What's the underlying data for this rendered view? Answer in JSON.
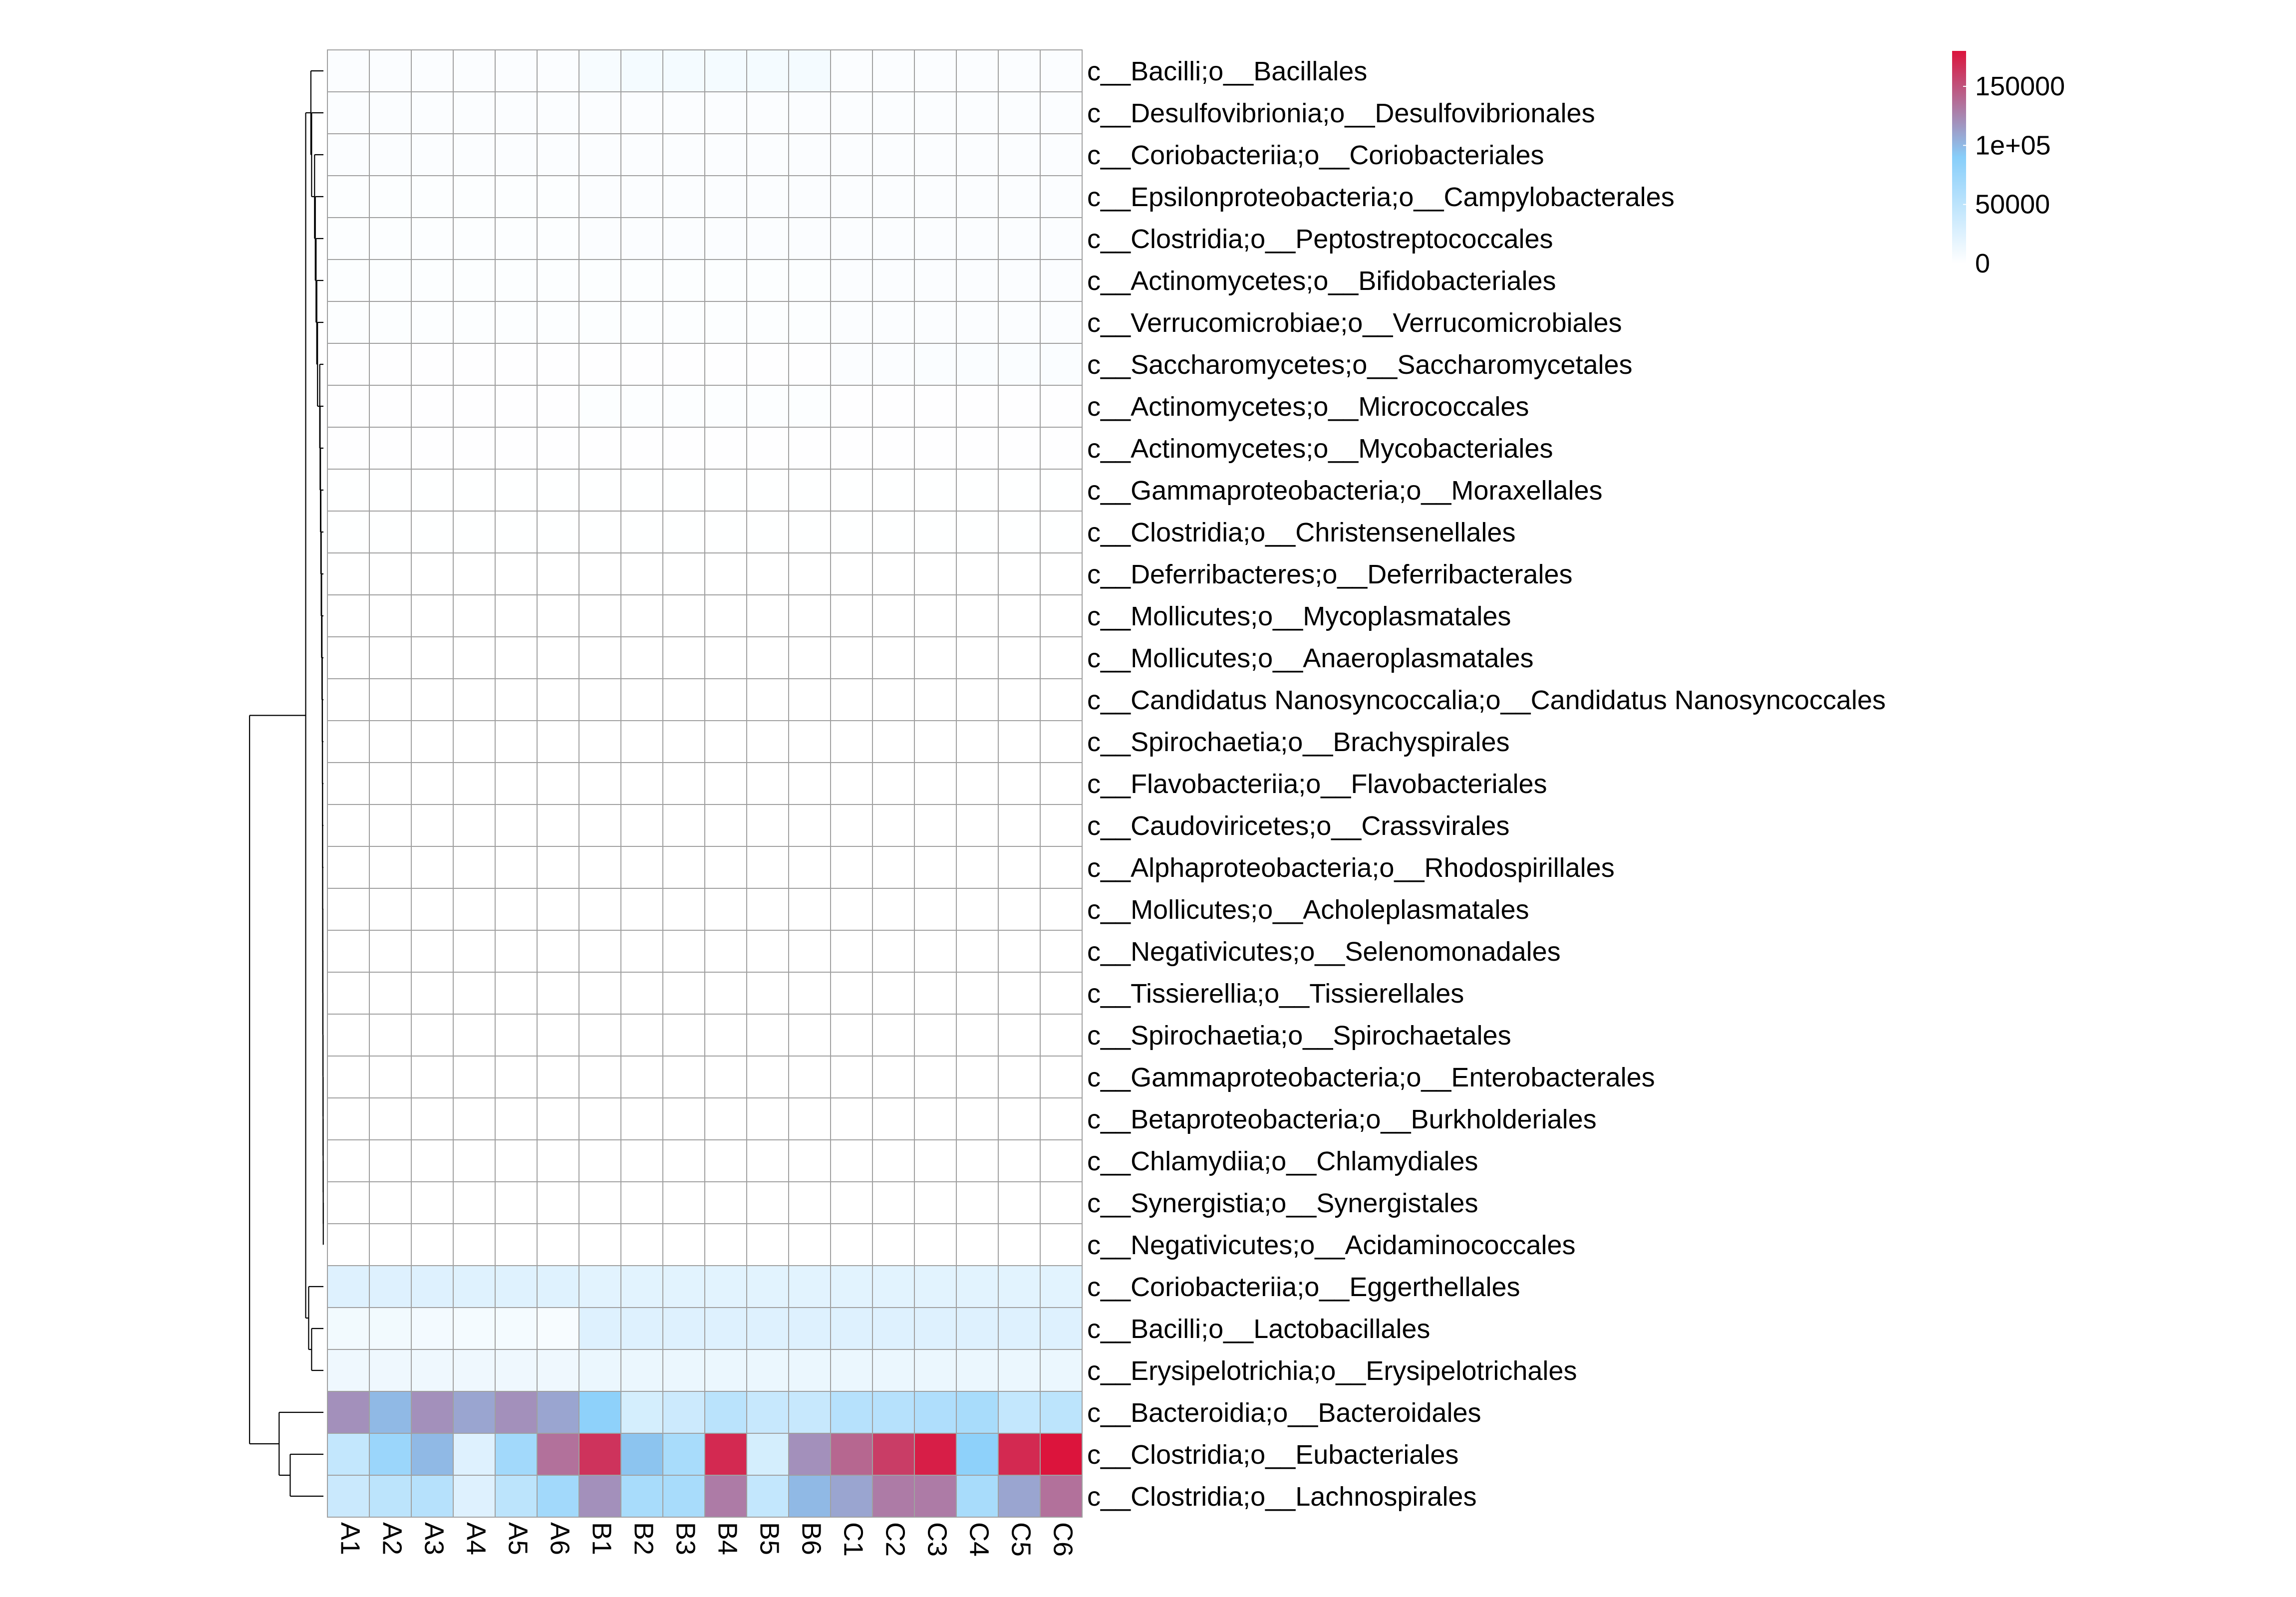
{
  "chart_data": {
    "type": "heatmap",
    "columns": [
      "A1",
      "A2",
      "A3",
      "A4",
      "A5",
      "A6",
      "B1",
      "B2",
      "B3",
      "B4",
      "B5",
      "B6",
      "C1",
      "C2",
      "C3",
      "C4",
      "C5",
      "C6"
    ],
    "rows": [
      "c__Bacilli;o__Bacillales",
      "c__Desulfovibrionia;o__Desulfovibrionales",
      "c__Coriobacteriia;o__Coriobacteriales",
      "c__Epsilonproteobacteria;o__Campylobacterales",
      "c__Clostridia;o__Peptostreptococcales",
      "c__Actinomycetes;o__Bifidobacteriales",
      "c__Verrucomicrobiae;o__Verrucomicrobiales",
      "c__Saccharomycetes;o__Saccharomycetales",
      "c__Actinomycetes;o__Micrococcales",
      "c__Actinomycetes;o__Mycobacteriales",
      "c__Gammaproteobacteria;o__Moraxellales",
      "c__Clostridia;o__Christensenellales",
      "c__Deferribacteres;o__Deferribacterales",
      "c__Mollicutes;o__Mycoplasmatales",
      "c__Mollicutes;o__Anaeroplasmatales",
      "c__Candidatus Nanosyncoccalia;o__Candidatus Nanosyncoccales",
      "c__Spirochaetia;o__Brachyspirales",
      "c__Flavobacteriia;o__Flavobacteriales",
      "c__Caudoviricetes;o__Crassvirales",
      "c__Alphaproteobacteria;o__Rhodospirillales",
      "c__Mollicutes;o__Acholeplasmatales",
      "c__Negativicutes;o__Selenomonadales",
      "c__Tissierellia;o__Tissierellales",
      "c__Spirochaetia;o__Spirochaetales",
      "c__Gammaproteobacteria;o__Enterobacterales",
      "c__Betaproteobacteria;o__Burkholderiales",
      "c__Chlamydiia;o__Chlamydiales",
      "c__Synergistia;o__Synergistales",
      "c__Negativicutes;o__Acidaminococcales",
      "c__Coriobacteriia;o__Eggerthellales",
      "c__Bacilli;o__Lactobacillales",
      "c__Erysipelotrichia;o__Erysipelotrichales",
      "c__Bacteroidia;o__Bacteroidales",
      "c__Clostridia;o__Eubacteriales",
      "c__Clostridia;o__Lachnospirales"
    ],
    "values": [
      [
        3000,
        3000,
        3000,
        3000,
        3000,
        3000,
        6000,
        8000,
        8000,
        8000,
        8000,
        8000,
        3000,
        3000,
        3000,
        3000,
        3000,
        3000
      ],
      [
        3000,
        3000,
        3000,
        3000,
        3000,
        3000,
        3000,
        3000,
        3000,
        3000,
        3000,
        3000,
        3000,
        3000,
        3000,
        3000,
        3000,
        3000
      ],
      [
        3000,
        3000,
        3000,
        3000,
        3000,
        3000,
        3000,
        3000,
        3000,
        3000,
        3000,
        3000,
        3000,
        3000,
        3000,
        3000,
        3000,
        3000
      ],
      [
        2000,
        2000,
        2000,
        2000,
        2000,
        2000,
        3000,
        3000,
        3000,
        3000,
        3000,
        3000,
        3000,
        3000,
        3000,
        3000,
        3000,
        3000
      ],
      [
        2000,
        2000,
        2000,
        2000,
        2000,
        2000,
        3000,
        3000,
        3000,
        3000,
        3000,
        3000,
        3000,
        3000,
        3000,
        3000,
        3000,
        3000
      ],
      [
        2000,
        2000,
        2000,
        2000,
        2000,
        2000,
        2000,
        2000,
        2000,
        2000,
        2000,
        2000,
        3000,
        3000,
        3000,
        3000,
        3000,
        3000
      ],
      [
        2000,
        2000,
        2000,
        2000,
        2000,
        2000,
        2000,
        2000,
        2000,
        2000,
        2000,
        2000,
        3000,
        3000,
        3000,
        3000,
        3000,
        3000
      ],
      [
        1000,
        1000,
        1000,
        1000,
        1000,
        1000,
        1000,
        1000,
        1000,
        1000,
        1000,
        1000,
        3000,
        3000,
        4000,
        4000,
        4000,
        4000
      ],
      [
        1000,
        1000,
        1000,
        1000,
        1000,
        1000,
        2000,
        2000,
        2000,
        2000,
        2000,
        2000,
        1000,
        1000,
        1000,
        1000,
        1000,
        1000
      ],
      [
        1000,
        1000,
        1000,
        1000,
        1000,
        1000,
        1000,
        1000,
        1000,
        1000,
        1000,
        1000,
        1000,
        1000,
        1000,
        1000,
        1000,
        1000
      ],
      [
        500,
        500,
        500,
        500,
        500,
        500,
        500,
        500,
        500,
        500,
        500,
        500,
        500,
        500,
        500,
        500,
        500,
        500
      ],
      [
        500,
        500,
        500,
        500,
        500,
        500,
        500,
        500,
        500,
        500,
        500,
        500,
        500,
        500,
        500,
        500,
        500,
        500
      ],
      [
        300,
        300,
        300,
        300,
        300,
        300,
        300,
        300,
        300,
        300,
        300,
        300,
        300,
        300,
        300,
        300,
        300,
        300
      ],
      [
        300,
        300,
        300,
        300,
        300,
        300,
        300,
        300,
        300,
        300,
        300,
        300,
        300,
        300,
        300,
        300,
        300,
        300
      ],
      [
        200,
        200,
        200,
        200,
        200,
        200,
        200,
        200,
        200,
        200,
        200,
        200,
        200,
        200,
        200,
        200,
        200,
        200
      ],
      [
        100,
        100,
        100,
        100,
        100,
        100,
        100,
        100,
        100,
        100,
        100,
        100,
        100,
        100,
        100,
        100,
        100,
        100
      ],
      [
        100,
        100,
        100,
        100,
        100,
        100,
        100,
        100,
        100,
        100,
        100,
        100,
        100,
        100,
        100,
        100,
        100,
        100
      ],
      [
        100,
        100,
        100,
        100,
        100,
        100,
        100,
        100,
        100,
        100,
        100,
        100,
        100,
        100,
        100,
        100,
        100,
        100
      ],
      [
        100,
        100,
        100,
        100,
        100,
        100,
        100,
        100,
        100,
        100,
        100,
        100,
        100,
        100,
        100,
        100,
        100,
        100
      ],
      [
        100,
        100,
        100,
        100,
        100,
        100,
        100,
        100,
        100,
        100,
        100,
        100,
        100,
        100,
        100,
        100,
        100,
        100
      ],
      [
        100,
        100,
        100,
        100,
        100,
        100,
        100,
        100,
        100,
        100,
        100,
        100,
        100,
        100,
        100,
        100,
        100,
        100
      ],
      [
        100,
        100,
        100,
        100,
        100,
        100,
        100,
        100,
        100,
        100,
        100,
        100,
        100,
        100,
        100,
        100,
        100,
        100
      ],
      [
        100,
        100,
        100,
        100,
        100,
        100,
        100,
        100,
        100,
        100,
        100,
        100,
        100,
        100,
        100,
        100,
        100,
        100
      ],
      [
        100,
        100,
        100,
        100,
        100,
        100,
        100,
        100,
        100,
        100,
        100,
        100,
        100,
        100,
        100,
        100,
        100,
        100
      ],
      [
        100,
        100,
        100,
        100,
        100,
        100,
        100,
        100,
        100,
        100,
        100,
        100,
        100,
        100,
        100,
        100,
        100,
        100
      ],
      [
        100,
        100,
        100,
        100,
        100,
        100,
        100,
        100,
        100,
        100,
        100,
        100,
        100,
        100,
        100,
        100,
        100,
        100
      ],
      [
        100,
        100,
        100,
        100,
        100,
        100,
        100,
        100,
        100,
        100,
        100,
        100,
        100,
        100,
        100,
        100,
        100,
        100
      ],
      [
        100,
        100,
        100,
        100,
        100,
        100,
        100,
        100,
        100,
        100,
        100,
        100,
        100,
        100,
        100,
        100,
        100,
        100
      ],
      [
        100,
        100,
        100,
        100,
        100,
        100,
        100,
        100,
        100,
        100,
        100,
        100,
        100,
        100,
        100,
        100,
        100,
        100
      ],
      [
        25000,
        25000,
        25000,
        24000,
        24000,
        24000,
        22000,
        22000,
        22000,
        22000,
        22000,
        22000,
        22000,
        22000,
        22000,
        22000,
        22000,
        22000
      ],
      [
        10000,
        10000,
        9000,
        8000,
        8000,
        6000,
        25000,
        25000,
        25000,
        25000,
        25000,
        25000,
        25000,
        25000,
        25000,
        25000,
        25000,
        25000
      ],
      [
        12000,
        12000,
        12000,
        12000,
        12000,
        12000,
        15000,
        15000,
        15000,
        15000,
        15000,
        15000,
        15000,
        15000,
        15000,
        15000,
        15000,
        15000
      ],
      [
        120000,
        100000,
        120000,
        110000,
        120000,
        110000,
        85000,
        32000,
        38000,
        52000,
        42000,
        42000,
        55000,
        55000,
        60000,
        65000,
        45000,
        50000
      ],
      [
        45000,
        75000,
        100000,
        25000,
        70000,
        135000,
        165000,
        95000,
        65000,
        170000,
        32000,
        120000,
        140000,
        160000,
        175000,
        85000,
        170000,
        180000
      ],
      [
        40000,
        50000,
        55000,
        25000,
        50000,
        70000,
        120000,
        65000,
        65000,
        130000,
        45000,
        100000,
        110000,
        130000,
        130000,
        65000,
        110000,
        135000
      ]
    ],
    "legend": {
      "ticks": [
        {
          "value": 0,
          "label": "0"
        },
        {
          "value": 50000,
          "label": "50000"
        },
        {
          "value": 100000,
          "label": "1e+05"
        },
        {
          "value": 150000,
          "label": "150000"
        }
      ],
      "max": 180000,
      "colors": [
        "#ffffff",
        "#87cefa",
        "#dc143c"
      ]
    },
    "grid_color": "#a0a0a0",
    "dendrogram": {
      "position": "left",
      "leaf_order": [
        0,
        1,
        2,
        3,
        4,
        5,
        6,
        7,
        8,
        9,
        10,
        11,
        12,
        13,
        14,
        15,
        16,
        17,
        18,
        19,
        20,
        21,
        22,
        23,
        24,
        25,
        26,
        27,
        28,
        29,
        30,
        31,
        32,
        33,
        34
      ],
      "merges": [
        [
          28,
          27,
          0.002
        ],
        [
          -1,
          26,
          0.003
        ],
        [
          -2,
          25,
          0.004
        ],
        [
          -3,
          24,
          0.005
        ],
        [
          -4,
          23,
          0.006
        ],
        [
          -5,
          22,
          0.007
        ],
        [
          -6,
          21,
          0.008
        ],
        [
          -7,
          20,
          0.009
        ],
        [
          -8,
          19,
          0.01
        ],
        [
          -9,
          18,
          0.011
        ],
        [
          -10,
          17,
          0.012
        ],
        [
          -11,
          16,
          0.013
        ],
        [
          -12,
          15,
          0.014
        ],
        [
          -13,
          14,
          0.016
        ],
        [
          -14,
          13,
          0.02
        ],
        [
          -15,
          12,
          0.025
        ],
        [
          -16,
          11,
          0.03
        ],
        [
          -17,
          10,
          0.035
        ],
        [
          -18,
          9,
          0.04
        ],
        [
          -19,
          8,
          0.045
        ],
        [
          -20,
          7,
          0.05
        ],
        [
          -21,
          6,
          0.08
        ],
        [
          -22,
          5,
          0.09
        ],
        [
          -23,
          4,
          0.1
        ],
        [
          -24,
          3,
          0.11
        ],
        [
          -25,
          2,
          0.12
        ],
        [
          -26,
          1,
          0.16
        ],
        [
          -27,
          0,
          0.17
        ],
        [
          30,
          31,
          0.16
        ],
        [
          29,
          -29,
          0.2
        ],
        [
          -28,
          -30,
          0.24
        ],
        [
          33,
          34,
          0.45
        ],
        [
          32,
          -32,
          0.6
        ],
        [
          -31,
          -33,
          1.0
        ]
      ]
    }
  }
}
